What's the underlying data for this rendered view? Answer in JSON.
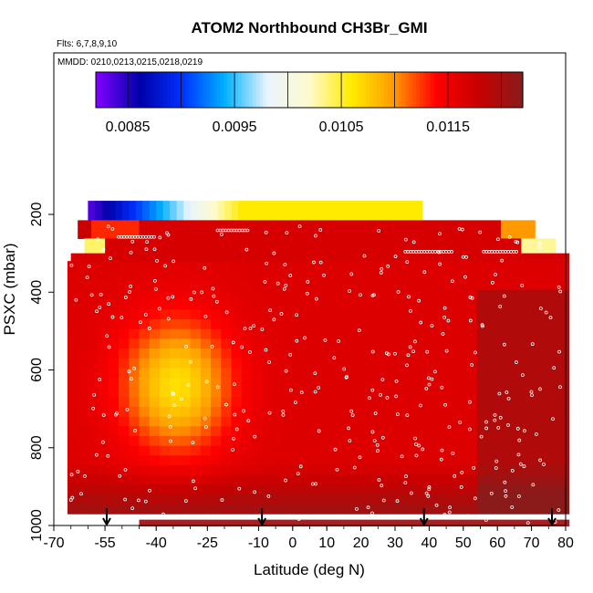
{
  "chart_data": {
    "type": "heatmap",
    "title": "ATOM2 Northbound CH3Br_GMI",
    "flights_label": "Flts: 6,7,8,9,10",
    "dates_label": "MMDD: 0210,0213,0215,0218,0219",
    "xlabel": "Latitude (deg N)",
    "ylabel": "PSXC (mbar)",
    "xlim": [
      -70,
      80
    ],
    "ylim": [
      1000,
      100
    ],
    "x_ticks": [
      -70,
      -55,
      -40,
      -25,
      -10,
      0,
      10,
      20,
      30,
      40,
      50,
      60,
      70,
      80
    ],
    "y_ticks": [
      200,
      400,
      600,
      800,
      1000
    ],
    "colorbar": {
      "range": [
        0.0082,
        0.0122
      ],
      "ticks": [
        "0.0085",
        "0.0095",
        "0.0105",
        "0.0115"
      ],
      "stops": [
        "#7d00ff",
        "#0000a8",
        "#0030ff",
        "#00b0ff",
        "#e8f4ff",
        "#fffacd",
        "#ffeb00",
        "#ff9900",
        "#ff0000",
        "#c80000",
        "#8b1a1a"
      ]
    },
    "profile_markers_lat": [
      -54.5,
      -9,
      38.5,
      76
    ]
  }
}
